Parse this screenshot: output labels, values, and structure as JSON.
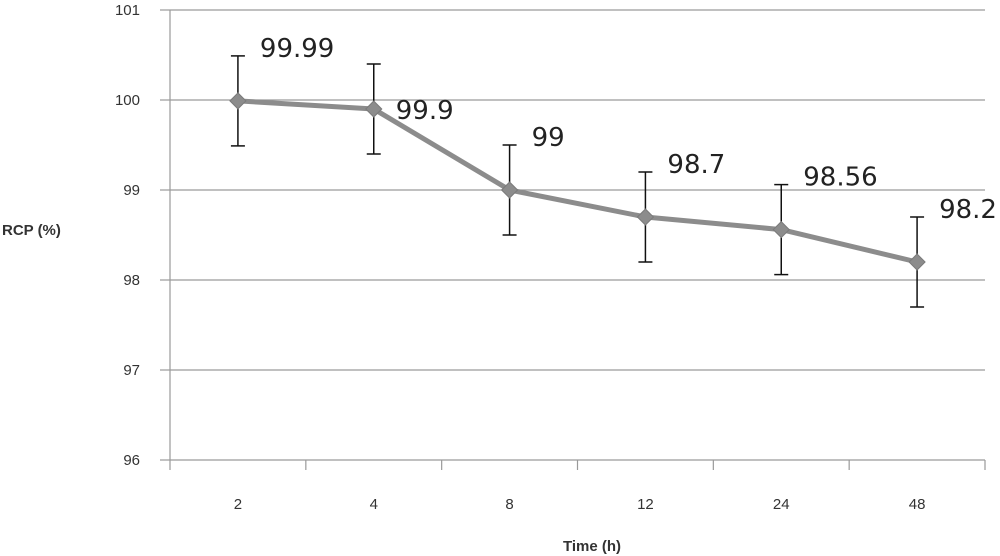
{
  "chart_data": {
    "type": "line",
    "title": "",
    "xlabel": "Time (h)",
    "ylabel": "RCP (%)",
    "categories": [
      "2",
      "4",
      "8",
      "12",
      "24",
      "48"
    ],
    "ylim": [
      96,
      101
    ],
    "yticks": [
      "96",
      "97",
      "98",
      "99",
      "100",
      "101"
    ],
    "grid": true,
    "legend": "none",
    "series": [
      {
        "values": [
          99.99,
          99.9,
          99.0,
          98.7,
          98.56,
          98.2
        ],
        "error": [
          0.5,
          0.5,
          0.5,
          0.5,
          0.5,
          0.5
        ],
        "data_labels": [
          "99.99",
          "99.9",
          "99",
          "98.7",
          "98.56",
          "98.2"
        ],
        "color": "#8c8c8c",
        "marker": "diamond"
      }
    ]
  }
}
